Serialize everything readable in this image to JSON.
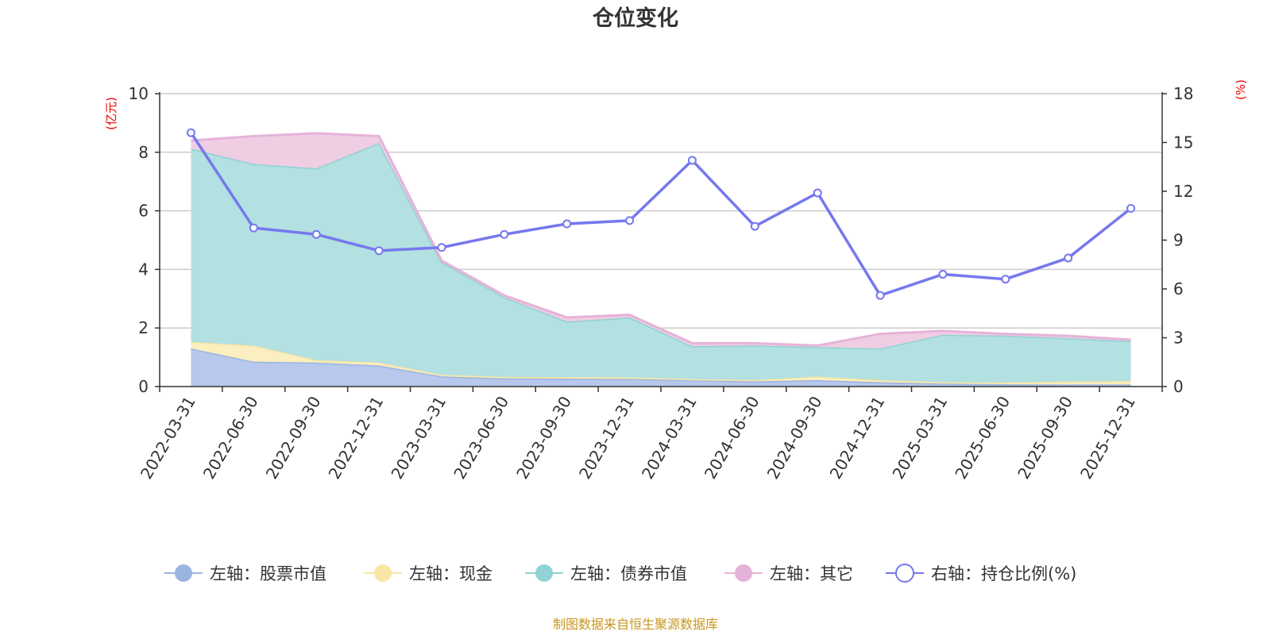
{
  "chart_data": {
    "type": "area",
    "title": "仓位变化",
    "left_axis_unit": "(亿元)",
    "right_axis_unit": "(%)",
    "categories": [
      "2022-03-31",
      "2022-06-30",
      "2022-09-30",
      "2022-12-31",
      "2023-03-31",
      "2023-06-30",
      "2023-09-30",
      "2023-12-31",
      "2024-03-31",
      "2024-06-30",
      "2024-09-30",
      "2024-12-31",
      "2025-03-31",
      "2025-06-30",
      "2025-09-30",
      "2025-12-31"
    ],
    "left_ylim": [
      0,
      10
    ],
    "left_yticks": [
      0,
      2,
      4,
      6,
      8,
      10
    ],
    "right_ylim": [
      0,
      18
    ],
    "right_yticks": [
      0,
      3,
      6,
      9,
      12,
      15,
      18
    ],
    "grid": true,
    "stacked": true,
    "series": [
      {
        "name": "左轴：股票市值",
        "axis": "left",
        "kind": "area",
        "color": "#9ab5e0",
        "fill": "#b7c8ec",
        "values": [
          1.3,
          0.85,
          0.82,
          0.72,
          0.35,
          0.28,
          0.27,
          0.26,
          0.22,
          0.18,
          0.22,
          0.15,
          0.1,
          0.08,
          0.07,
          0.07
        ]
      },
      {
        "name": "左轴：现金",
        "axis": "left",
        "kind": "area",
        "color": "#f9e6a6",
        "fill": "#fbeebf",
        "values": [
          0.22,
          0.55,
          0.08,
          0.1,
          0.05,
          0.05,
          0.05,
          0.05,
          0.03,
          0.04,
          0.12,
          0.07,
          0.05,
          0.06,
          0.1,
          0.12
        ]
      },
      {
        "name": "左轴：债券市值",
        "axis": "left",
        "kind": "area",
        "color": "#8fd3d4",
        "fill": "#b3e0e0",
        "values": [
          6.6,
          6.2,
          6.55,
          7.5,
          3.85,
          2.72,
          1.9,
          2.05,
          1.13,
          1.18,
          1.01,
          1.08,
          1.62,
          1.6,
          1.48,
          1.36
        ]
      },
      {
        "name": "左轴：其它",
        "axis": "left",
        "kind": "area",
        "color": "#e5b3d8",
        "fill": "#efcde3",
        "values": [
          0.28,
          0.95,
          1.2,
          0.23,
          0.05,
          0.06,
          0.14,
          0.09,
          0.1,
          0.08,
          0.05,
          0.5,
          0.13,
          0.06,
          0.08,
          0.05
        ]
      },
      {
        "name": "右轴：持仓比例(%)",
        "axis": "right",
        "kind": "line",
        "color": "#7678ee",
        "values": [
          15.6,
          9.75,
          9.35,
          8.35,
          8.55,
          9.35,
          10.0,
          10.2,
          13.9,
          9.85,
          11.9,
          5.6,
          6.9,
          6.6,
          7.9,
          10.95
        ]
      }
    ]
  },
  "source_note": "制图数据来自恒生聚源数据库"
}
